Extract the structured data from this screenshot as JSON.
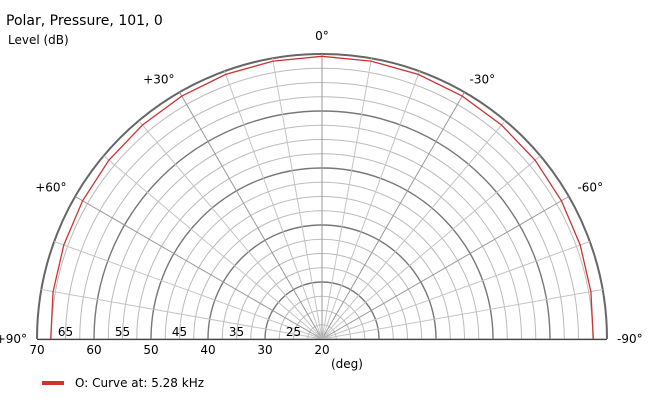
{
  "chart_data": {
    "type": "polar",
    "title": "Polar, Pressure, 101, 0",
    "radial_label": "Level  (dB)",
    "angle_label": "(deg)",
    "radial_min": 20,
    "radial_max": 70,
    "radial_ticks_bottom": [
      "70",
      "60",
      "50",
      "40",
      "30",
      "20"
    ],
    "radial_ticks_upper": [
      "65",
      "55",
      "45",
      "35",
      "25"
    ],
    "angle_labels": [
      {
        "angle": 0,
        "text": "0°"
      },
      {
        "angle": 30,
        "text": "+30°"
      },
      {
        "angle": -30,
        "text": "-30°"
      },
      {
        "angle": 60,
        "text": "+60°"
      },
      {
        "angle": -60,
        "text": "-60°"
      },
      {
        "angle": 90,
        "text": "+90°"
      },
      {
        "angle": -90,
        "text": "-90°"
      }
    ],
    "series": [
      {
        "name": "O: Curve at: 5.28 kHz",
        "color": "#cc3333",
        "angles": [
          90,
          80,
          70,
          60,
          50,
          40,
          30,
          20,
          10,
          0,
          -10,
          -20,
          -30,
          -40,
          -50,
          -60,
          -70,
          -80,
          -90
        ],
        "values": [
          67.6,
          67.9,
          68.2,
          68.5,
          68.8,
          69.0,
          69.2,
          69.4,
          69.5,
          69.6,
          69.5,
          69.4,
          69.2,
          69.0,
          68.8,
          68.5,
          68.2,
          67.9,
          67.6
        ]
      }
    ]
  }
}
